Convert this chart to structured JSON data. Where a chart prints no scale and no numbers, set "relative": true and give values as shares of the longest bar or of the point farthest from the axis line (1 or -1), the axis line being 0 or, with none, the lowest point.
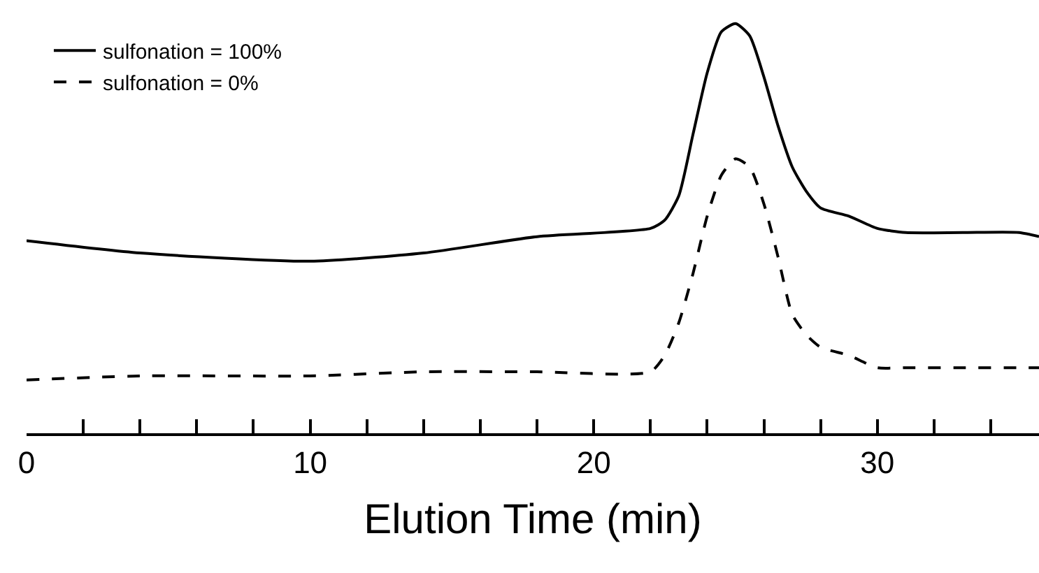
{
  "chart_data": {
    "type": "line",
    "relative": true,
    "xlabel": "Elution Time (min)",
    "xlim": [
      0,
      35.7
    ],
    "xticks": [
      0,
      {
        "value": 2,
        "label": null
      },
      {
        "value": 4,
        "label": null
      },
      {
        "value": 6,
        "label": null
      },
      {
        "value": 8,
        "label": null
      },
      10,
      {
        "value": 12,
        "label": null
      },
      {
        "value": 14,
        "label": null
      },
      {
        "value": 16,
        "label": null
      },
      {
        "value": 18,
        "label": null
      },
      20,
      {
        "value": 22,
        "label": null
      },
      {
        "value": 24,
        "label": null
      },
      {
        "value": 26,
        "label": null
      },
      {
        "value": 28,
        "label": null
      },
      30,
      {
        "value": 32,
        "label": null
      },
      {
        "value": 34,
        "label": null
      }
    ],
    "tick_labels": "x",
    "legend": "top left",
    "marker": "none",
    "x": [
      0,
      4,
      10,
      14,
      18,
      22,
      22.5,
      23,
      23.5,
      24,
      24.5,
      25,
      25.5,
      26,
      26.5,
      27,
      27.5,
      28,
      29,
      30,
      31,
      33,
      35,
      35.7
    ],
    "series": [
      {
        "name": "sulfonation = 100%",
        "color": "#000000",
        "line_style": "solid",
        "values": [
          0.47,
          0.44,
          0.42,
          0.44,
          0.48,
          0.5,
          0.52,
          0.58,
          0.73,
          0.88,
          0.98,
          1,
          0.97,
          0.87,
          0.75,
          0.65,
          0.59,
          0.55,
          0.53,
          0.5,
          0.49,
          0.49,
          0.49,
          0.48
        ]
      },
      {
        "name": "sulfonation = 0%",
        "color": "#000000",
        "line_style": "dashed",
        "values": [
          0.13,
          0.14,
          0.14,
          0.15,
          0.15,
          0.15,
          0.19,
          0.27,
          0.39,
          0.53,
          0.63,
          0.67,
          0.65,
          0.56,
          0.43,
          0.29,
          0.24,
          0.21,
          0.19,
          0.16,
          0.16,
          0.16,
          0.16,
          0.16
        ]
      }
    ]
  }
}
